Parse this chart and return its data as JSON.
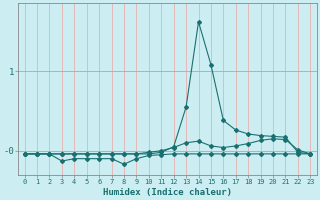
{
  "xlabel": "Humidex (Indice chaleur)",
  "bg_color": "#cceef2",
  "line_color": "#1a7070",
  "grid_color_h": "#e89090",
  "grid_color_v": "#e8b0b0",
  "x_ticks": [
    0,
    1,
    2,
    3,
    4,
    5,
    6,
    7,
    8,
    9,
    10,
    11,
    12,
    13,
    14,
    15,
    16,
    17,
    18,
    19,
    20,
    21,
    22,
    23
  ],
  "series": [
    {
      "x": [
        0,
        1,
        2,
        3,
        4,
        5,
        6,
        7,
        8,
        9,
        10,
        11,
        12,
        13,
        14,
        15,
        16,
        17,
        18,
        19,
        20,
        21,
        22,
        23
      ],
      "y": [
        -0.04,
        -0.04,
        -0.04,
        -0.04,
        -0.04,
        -0.04,
        -0.04,
        -0.04,
        -0.04,
        -0.04,
        -0.04,
        -0.02,
        0.05,
        0.55,
        1.62,
        1.08,
        0.38,
        0.26,
        0.21,
        0.19,
        0.18,
        0.17,
        -0.02,
        -0.04
      ]
    },
    {
      "x": [
        0,
        1,
        2,
        3,
        4,
        5,
        6,
        7,
        8,
        9,
        10,
        11,
        12,
        13,
        14,
        15,
        16,
        17,
        18,
        19,
        20,
        21,
        22,
        23
      ],
      "y": [
        -0.04,
        -0.04,
        -0.04,
        -0.04,
        -0.04,
        -0.04,
        -0.04,
        -0.04,
        -0.04,
        -0.04,
        -0.02,
        0.0,
        0.04,
        0.1,
        0.12,
        0.06,
        0.04,
        0.06,
        0.09,
        0.13,
        0.15,
        0.14,
        0.01,
        -0.04
      ]
    },
    {
      "x": [
        0,
        1,
        2,
        3,
        4,
        5,
        6,
        7,
        8,
        9,
        10,
        11,
        12,
        13,
        14,
        15,
        16,
        17,
        18,
        19,
        20,
        21,
        22,
        23
      ],
      "y": [
        -0.04,
        -0.04,
        -0.04,
        -0.13,
        -0.1,
        -0.1,
        -0.1,
        -0.1,
        -0.17,
        -0.1,
        -0.06,
        -0.05,
        -0.04,
        -0.04,
        -0.04,
        -0.04,
        -0.04,
        -0.04,
        -0.04,
        -0.04,
        -0.04,
        -0.04,
        -0.04,
        -0.04
      ]
    }
  ],
  "ylim": [
    -0.3,
    1.85
  ],
  "xlim": [
    -0.5,
    23.5
  ],
  "yticks": [
    0.0,
    1.0
  ],
  "ytick_labels": [
    "-0",
    "1"
  ],
  "figsize": [
    3.2,
    2.0
  ],
  "dpi": 100
}
